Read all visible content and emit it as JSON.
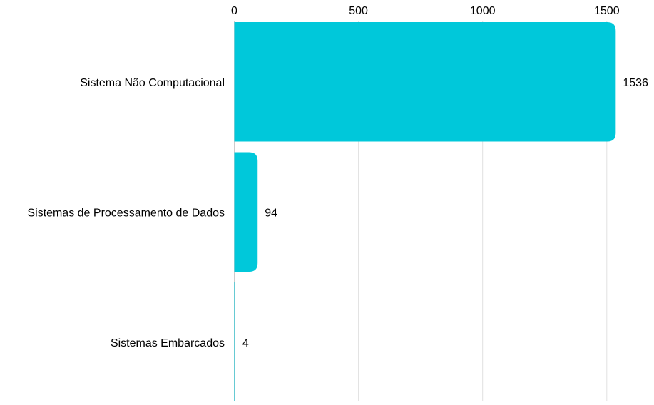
{
  "chart_data": {
    "type": "bar",
    "orientation": "horizontal",
    "categories": [
      "Sistema Não Computacional",
      "Sistemas de Processamento de Dados",
      "Sistemas Embarcados"
    ],
    "values": [
      1536,
      94,
      4
    ],
    "x_ticks": [
      0,
      500,
      1000,
      1500
    ],
    "xlim": [
      0,
      1536
    ],
    "title": "",
    "xlabel": "",
    "ylabel": "",
    "grid": true,
    "tick_position": "top",
    "legend": "none",
    "bar_color": "#00c8da",
    "grid_color": "#e0e0e0"
  }
}
